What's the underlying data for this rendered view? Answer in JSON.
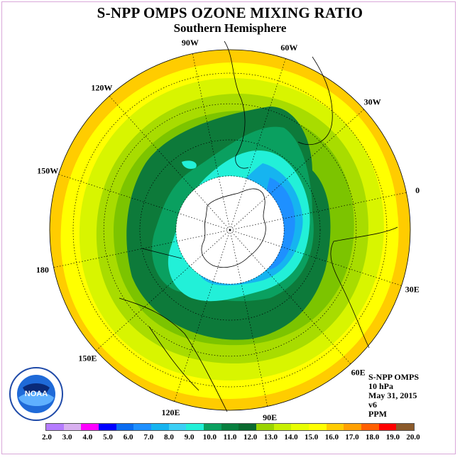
{
  "title": "S-NPP OMPS OZONE MIXING RATIO",
  "subtitle": "Southern Hemisphere",
  "longitude_labels": [
    "90W",
    "60W",
    "30W",
    "0",
    "30E",
    "60E",
    "90E",
    "120E",
    "150E",
    "180",
    "150W",
    "120W"
  ],
  "info": {
    "instrument": "S-NPP OMPS",
    "level": "10 hPa",
    "date": "May 31, 2015",
    "version": "v6",
    "units": "PPM"
  },
  "logo": {
    "text": "NOAA",
    "icon": "noaa-logo-icon"
  },
  "colorbar": {
    "labels": [
      "2.0",
      "3.0",
      "4.0",
      "5.0",
      "6.0",
      "7.0",
      "8.0",
      "9.0",
      "10.0",
      "11.0",
      "12.0",
      "13.0",
      "14.0",
      "15.0",
      "16.0",
      "17.0",
      "18.0",
      "19.0",
      "20.0"
    ],
    "colors": [
      "#b57cff",
      "#d9b0f0",
      "#ff00ff",
      "#0000ff",
      "#0a6cf0",
      "#1e90ff",
      "#16b4f0",
      "#3ccff5",
      "#22f0d8",
      "#0aa060",
      "#078040",
      "#0a6a30",
      "#9ad400",
      "#c8f000",
      "#e8ff00",
      "#ffff00",
      "#ffcc00",
      "#ffa000",
      "#ff6000",
      "#ff0000",
      "#8b5a2b"
    ]
  }
}
